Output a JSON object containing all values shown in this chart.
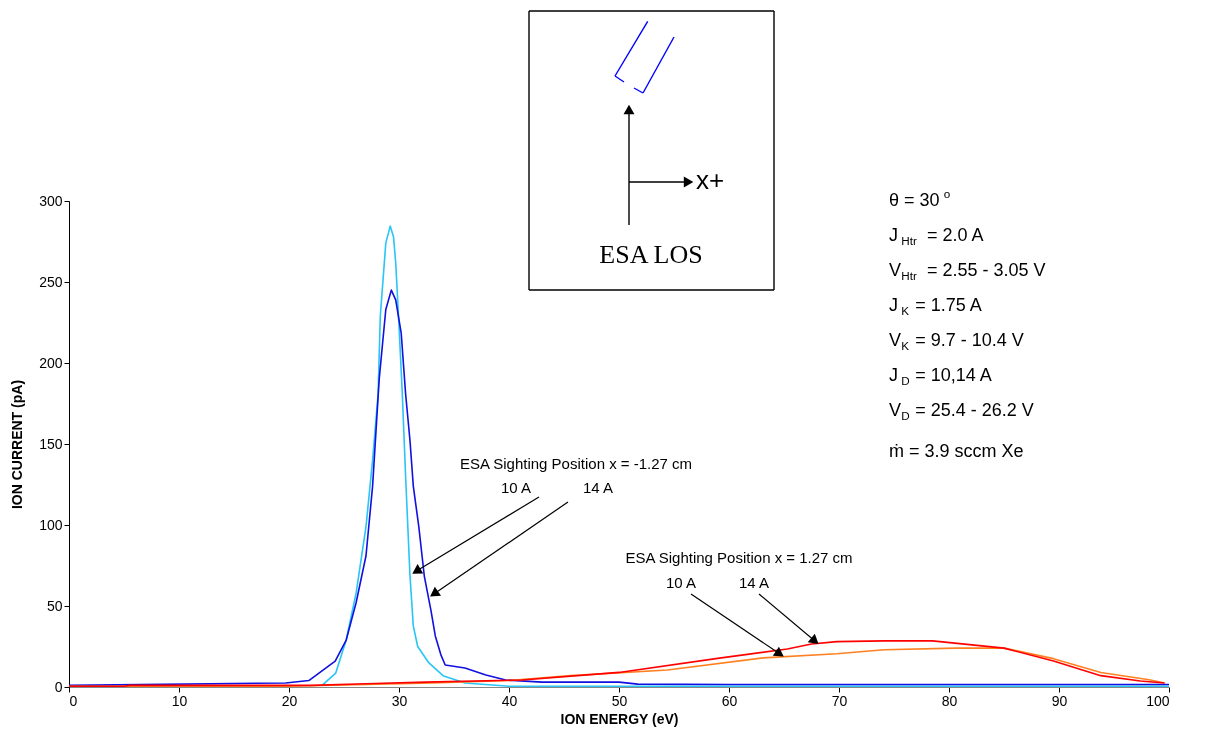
{
  "chart_data": {
    "type": "line",
    "xlabel": "ION ENERGY (eV)",
    "ylabel": "ION CURRENT (pA)",
    "xlim": [
      0,
      100
    ],
    "xticks": [
      0,
      10,
      20,
      30,
      40,
      50,
      60,
      70,
      80,
      90,
      100
    ],
    "ylim": [
      0,
      300
    ],
    "yticks": [
      0,
      50,
      100,
      150,
      200,
      250,
      300
    ],
    "grid": false,
    "legend": false,
    "marker": "none",
    "line_style": "solid",
    "series": [
      {
        "color": "#29c5f6",
        "x": [
          23,
          24.25,
          25.2,
          26.1,
          27,
          27.6,
          28.1,
          28.3,
          28.8,
          29.2,
          29.5,
          29.7,
          30.0,
          30.3,
          30.6,
          31.0,
          31.3,
          31.7,
          32.7,
          34,
          36,
          40,
          50,
          60,
          70,
          80,
          90,
          100
        ],
        "values": [
          1,
          8.6,
          29,
          58,
          99,
          140,
          181,
          229,
          274,
          284.5,
          278,
          262,
          223,
          181,
          130,
          68.5,
          37.7,
          25,
          15,
          7,
          2.5,
          0.5,
          0.5,
          0.5,
          0.5,
          0.5,
          0.5,
          0.5
        ]
      },
      {
        "color": "#1010e0",
        "x": [
          0,
          19.7,
          21.8,
          23,
          24.2,
          25.2,
          26.1,
          27,
          27.6,
          28.2,
          28.8,
          29.3,
          29.7,
          30.2,
          30.6,
          31,
          31.3,
          31.8,
          32.3,
          32.9,
          33.3,
          33.8,
          34.2,
          36,
          37.9,
          39.7,
          43,
          47,
          50,
          51.7,
          60,
          80,
          100
        ],
        "values": [
          1,
          2.5,
          4,
          10,
          16,
          29,
          52,
          81,
          124,
          190,
          233,
          245,
          239,
          218.5,
          181,
          152,
          124,
          99,
          68.5,
          47.5,
          31.5,
          20,
          13.6,
          11.7,
          7.4,
          4.3,
          3,
          3,
          3,
          1.8,
          1.5,
          1.5,
          1.5
        ]
      },
      {
        "color": "#ff8020",
        "x": [
          0,
          20,
          27,
          33,
          40,
          45.6,
          54.4,
          63.1,
          69.8,
          74.1,
          80.6,
          85,
          89.5,
          93.8,
          98.2,
          99.6
        ],
        "values": [
          0.5,
          0.5,
          1.5,
          2.5,
          4,
          7,
          10.5,
          18,
          20.5,
          23,
          24,
          24,
          17.5,
          9,
          4.5,
          2.5
        ]
      },
      {
        "color": "#ff0000",
        "x": [
          0,
          5,
          5.5,
          22,
          27,
          32.4,
          41.2,
          50,
          58.8,
          65.3,
          67.5,
          69.8,
          74.1,
          78.5,
          85,
          89.5,
          93.8,
          97.4,
          99.6
        ],
        "values": [
          0.5,
          0.5,
          1,
          1,
          2,
          3,
          4.3,
          9,
          17.5,
          23.5,
          26.5,
          28,
          28.5,
          28.5,
          24,
          16,
          7,
          3.7,
          2.5
        ]
      }
    ],
    "annotations": [
      "ESA Sighting Position x = -1.27 cm",
      {
        "text": "10 A",
        "x": 31.7,
        "y": 72
      },
      {
        "text": "14 A",
        "x": 33.3,
        "y": 58
      },
      "ESA Sighting Position x = 1.27 cm",
      {
        "text": "10 A",
        "x": 64.5,
        "y": 21
      },
      {
        "text": "14 A",
        "x": 67.7,
        "y": 29
      },
      "ESA LOS",
      "x+",
      "θ = 30 $^{o}$",
      "J$_{Htr}$ = 2.0 A",
      "V$_{Htr}$ = 2.55 - 3.05 V",
      "J$_{K}$ = 1.75 A",
      "V$_{K}$ = 9.7 - 10.4 V",
      "J$_{D}$ = 10,14 A",
      "V$_{D}$ = 25.4 - 26.2 V",
      "ṁ = 3.9 sccm Xe"
    ]
  }
}
